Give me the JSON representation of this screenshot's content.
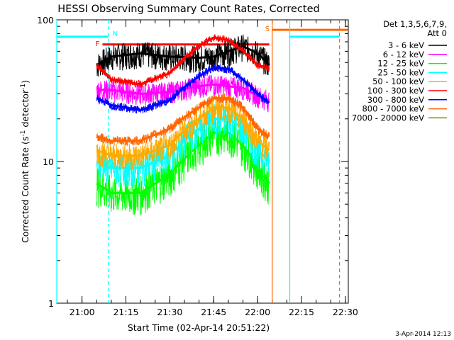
{
  "chart_data": {
    "type": "line",
    "title": "HESSI Observing Summary Count Rates, Corrected",
    "xlabel": "Start Time (02-Apr-14 20:51:22)",
    "ylabel_main": "Corrected Count Rate (s",
    "ylabel_sup1": "-1",
    "ylabel_mid": " detector",
    "ylabel_sup2": "-1",
    "ylabel_end": ")",
    "x_scale": "time",
    "x_ticks": [
      "21:00",
      "21:15",
      "21:30",
      "21:45",
      "22:00",
      "22:15",
      "22:30"
    ],
    "xlim": [
      "20:51:22",
      "22:31:00"
    ],
    "y_scale": "log",
    "y_ticks": [
      "1",
      "10",
      "100"
    ],
    "ylim": [
      1,
      100
    ],
    "legend_header": [
      "Det 1,3,5,6,7,9,",
      "Att 0"
    ],
    "legend_position": "top-right",
    "timestamp": "3-Apr-2014 12:13",
    "data_gap": [
      "21:05",
      "22:04"
    ],
    "series": [
      {
        "name": "3 - 6 keV",
        "color": "#000000",
        "values_hhmm": [
          "21:05",
          "21:10",
          "21:20",
          "21:30",
          "21:40",
          "21:45",
          "21:50",
          "21:55",
          "22:00",
          "22:04"
        ],
        "values": [
          48,
          55,
          58,
          55,
          54,
          55,
          60,
          65,
          58,
          48
        ]
      },
      {
        "name": "6 - 12 keV",
        "color": "#ff00ff",
        "values_hhmm": [
          "21:05",
          "21:10",
          "21:20",
          "21:30",
          "21:40",
          "21:45",
          "21:50",
          "21:55",
          "22:00",
          "22:04"
        ],
        "values": [
          32,
          32,
          30,
          31,
          34,
          35,
          34,
          33,
          29,
          27
        ]
      },
      {
        "name": "12 - 25 keV",
        "color": "#00ff00",
        "values_hhmm": [
          "21:05",
          "21:10",
          "21:20",
          "21:30",
          "21:40",
          "21:45",
          "21:50",
          "21:55",
          "22:00",
          "22:04"
        ],
        "values": [
          7,
          6,
          6,
          8,
          13,
          16,
          16,
          13,
          9,
          7
        ]
      },
      {
        "name": "25 - 50 keV",
        "color": "#00ffff",
        "values_hhmm": [
          "21:05",
          "21:10",
          "21:20",
          "21:30",
          "21:40",
          "21:45",
          "21:50",
          "21:55",
          "22:00",
          "22:04"
        ],
        "values": [
          10,
          9,
          9,
          11,
          17,
          20,
          20,
          17,
          12,
          10
        ]
      },
      {
        "name": "50 - 100 keV",
        "color": "#ffaa00",
        "values_hhmm": [
          "21:05",
          "21:10",
          "21:20",
          "21:30",
          "21:40",
          "21:45",
          "21:50",
          "21:55",
          "22:00",
          "22:04"
        ],
        "values": [
          12,
          11,
          11,
          13,
          20,
          24,
          24,
          20,
          14,
          12
        ]
      },
      {
        "name": "100 - 300 keV",
        "color": "#ff0000",
        "values_hhmm": [
          "21:05",
          "21:10",
          "21:20",
          "21:30",
          "21:40",
          "21:45",
          "21:50",
          "21:55",
          "22:00",
          "22:04"
        ],
        "values": [
          48,
          38,
          35,
          42,
          65,
          75,
          72,
          60,
          48,
          45
        ]
      },
      {
        "name": "300 - 800 keV",
        "color": "#0000ff",
        "values_hhmm": [
          "21:05",
          "21:10",
          "21:20",
          "21:30",
          "21:40",
          "21:45",
          "21:50",
          "21:55",
          "22:00",
          "22:04"
        ],
        "values": [
          28,
          25,
          23,
          27,
          40,
          46,
          45,
          38,
          30,
          26
        ]
      },
      {
        "name": "800 - 7000 keV",
        "color": "#ff6600",
        "values_hhmm": [
          "21:05",
          "21:10",
          "21:20",
          "21:30",
          "21:40",
          "21:45",
          "21:50",
          "21:55",
          "22:00",
          "22:04"
        ],
        "values": [
          15,
          14,
          14,
          17,
          24,
          28,
          28,
          24,
          17,
          15
        ]
      },
      {
        "name": "7000 - 20000 keV",
        "color": "#888800",
        "values_hhmm": [],
        "values": []
      }
    ],
    "flag_bars": [
      {
        "label": "F",
        "color": "#ff0000",
        "start": "21:07",
        "end": "22:04",
        "level": 67
      },
      {
        "label": "S",
        "color": "#ff6600",
        "start": "22:05",
        "end": "22:31",
        "level": 85
      }
    ],
    "night_bars": [
      {
        "color": "#00ffff",
        "start": "20:51:22",
        "end": "21:09",
        "level": 76
      },
      {
        "color": "#00ffff",
        "start": "22:11",
        "end": "22:28",
        "level": 76
      }
    ],
    "event_lines": [
      {
        "label": "N",
        "color": "#00ffff",
        "time": "21:09",
        "style": "dashed"
      },
      {
        "label": "",
        "color": "#00ffff",
        "time": "20:51:22",
        "style": "solid"
      },
      {
        "label": "",
        "color": "#ff6600",
        "time": "22:05",
        "style": "solid"
      },
      {
        "label": "",
        "color": "#00ffff",
        "time": "22:11",
        "style": "solid"
      },
      {
        "label": "",
        "color": "#ff6600",
        "time": "22:28",
        "style": "dashed"
      }
    ]
  }
}
